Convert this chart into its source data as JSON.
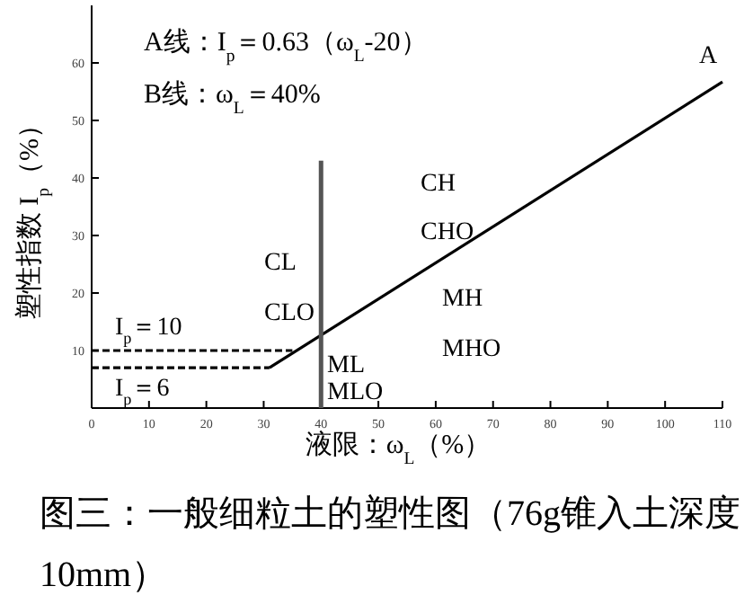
{
  "chart_data": {
    "type": "line",
    "title": "图三：一般细粒土的塑性图（76g锥入土深度10mm）",
    "xlabel": "液限：ω$_{L}$（%）",
    "ylabel": "塑性指数 I$_{p}$（%）",
    "xlim": [
      0,
      110
    ],
    "ylim": [
      0,
      70
    ],
    "xticks": [
      0,
      10,
      20,
      30,
      40,
      50,
      60,
      70,
      80,
      90,
      100,
      110
    ],
    "yticks": [
      10,
      20,
      30,
      40,
      50,
      60
    ],
    "grid": false,
    "marker": "none",
    "series": [
      {
        "x": [
          0,
          35
        ],
        "values": [
          10,
          10
        ],
        "color": "#000000",
        "line_style": "dashed"
      },
      {
        "x": [
          0,
          31
        ],
        "values": [
          7,
          7
        ],
        "color": "#000000",
        "line_style": "dashed"
      },
      {
        "x": [
          31,
          110
        ],
        "values": [
          7,
          56.7
        ],
        "color": "#000000",
        "line_style": "solid"
      },
      {
        "x": [
          40,
          40
        ],
        "values": [
          0,
          43
        ],
        "color": "#555555",
        "line_style": "solid"
      }
    ],
    "annotations": [
      "A线：I$_{p}$＝0.63（ω$_{L}$-20）",
      "B线：ω$_{L}$＝40%",
      "A",
      "CL",
      "CLO",
      "ML",
      "MLO",
      "CH",
      "CHO",
      "MH",
      "MHO",
      "I$_{p}$＝10",
      "I$_{p}$＝6"
    ]
  }
}
